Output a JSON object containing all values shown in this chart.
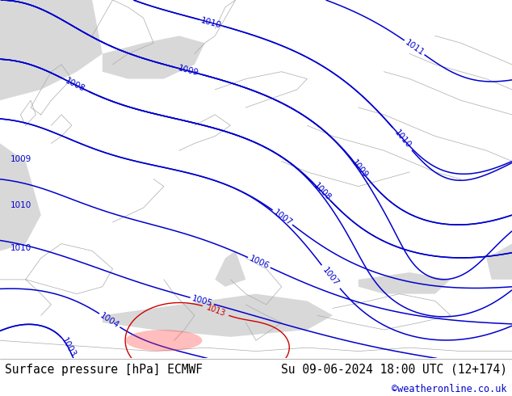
{
  "title_left": "Surface pressure [hPa] ECMWF",
  "title_right": "Su 09-06-2024 18:00 UTC (12+174)",
  "credit": "©weatheronline.co.uk",
  "credit_color": "#0000cc",
  "land_color": "#b8e090",
  "sea_color": "#d8d8d8",
  "bottom_bg": "#ffffff",
  "text_color": "#000000",
  "title_fontsize": 10.5,
  "credit_fontsize": 8.5,
  "contour_color": "#0000cc",
  "contour_red_color": "#cc0000",
  "contour_black_color": "#000000",
  "label_fontsize": 7.5
}
